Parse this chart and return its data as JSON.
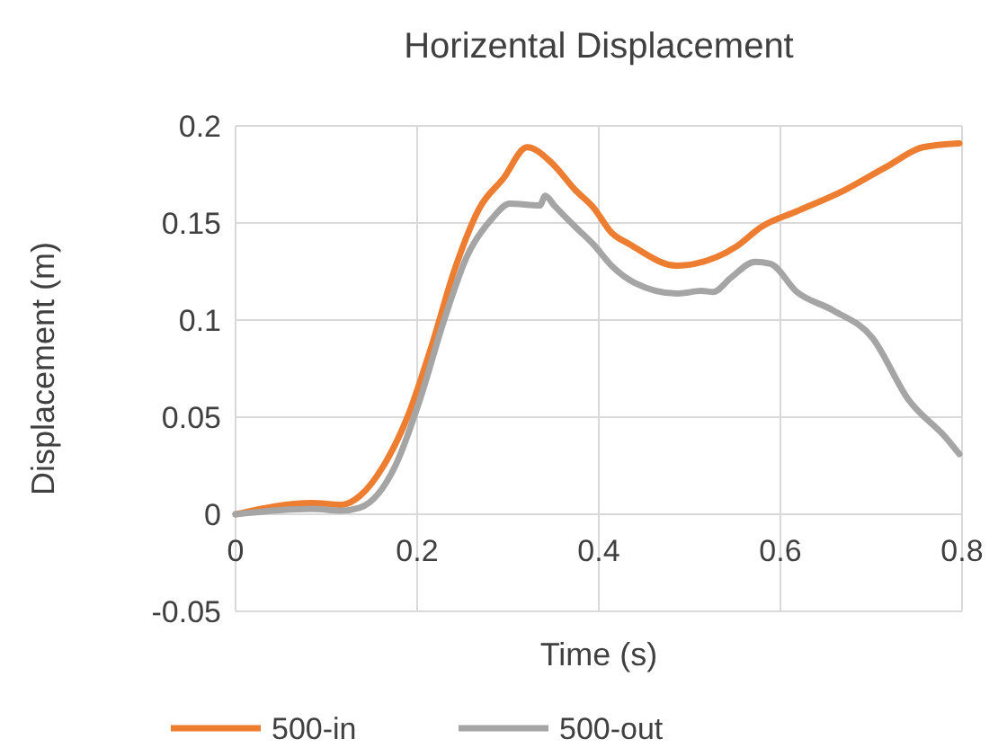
{
  "chart_data": {
    "type": "line",
    "title": "Horizental Displacement",
    "xlabel": "Time (s)",
    "ylabel": "Displacement (m)",
    "xlim": [
      0,
      0.8
    ],
    "xticks": [
      0,
      0.2,
      0.4,
      0.6,
      0.8
    ],
    "ylim": [
      -0.05,
      0.2
    ],
    "yticks": [
      -0.05,
      0,
      0.05,
      0.1,
      0.15,
      0.2
    ],
    "grid": true,
    "legend": "bottom",
    "marker": "none",
    "line_style": "solid",
    "series": [
      {
        "name": "500-in",
        "color": "#ed7d31",
        "x": [
          0,
          0.084,
          0.117,
          0.137,
          0.163,
          0.189,
          0.216,
          0.242,
          0.269,
          0.295,
          0.321,
          0.348,
          0.374,
          0.394,
          0.414,
          0.434,
          0.486,
          0.506,
          0.552,
          0.579,
          0.618,
          0.671,
          0.717,
          0.757,
          0.797
        ],
        "values": [
          0,
          0.0058,
          0.0049,
          0.0095,
          0.025,
          0.0497,
          0.0868,
          0.127,
          0.158,
          0.173,
          0.189,
          0.181,
          0.167,
          0.158,
          0.145,
          0.139,
          0.128,
          0.129,
          0.138,
          0.148,
          0.156,
          0.167,
          0.179,
          0.189,
          0.191
        ]
      },
      {
        "name": "500-out",
        "color": "#a5a5a5",
        "x": [
          0,
          0.084,
          0.117,
          0.137,
          0.176,
          0.203,
          0.229,
          0.255,
          0.282,
          0.302,
          0.335,
          0.341,
          0.351,
          0.374,
          0.394,
          0.414,
          0.44,
          0.486,
          0.513,
          0.526,
          0.546,
          0.572,
          0.589,
          0.618,
          0.658,
          0.701,
          0.741,
          0.783,
          0.797
        ],
        "values": [
          0,
          0.0028,
          0.0019,
          0.0034,
          0.025,
          0.059,
          0.099,
          0.133,
          0.152,
          0.16,
          0.159,
          0.164,
          0.159,
          0.148,
          0.139,
          0.128,
          0.119,
          0.1136,
          0.115,
          0.1145,
          0.122,
          0.13,
          0.129,
          0.1145,
          0.105,
          0.091,
          0.059,
          0.039,
          0.031
        ]
      }
    ]
  }
}
